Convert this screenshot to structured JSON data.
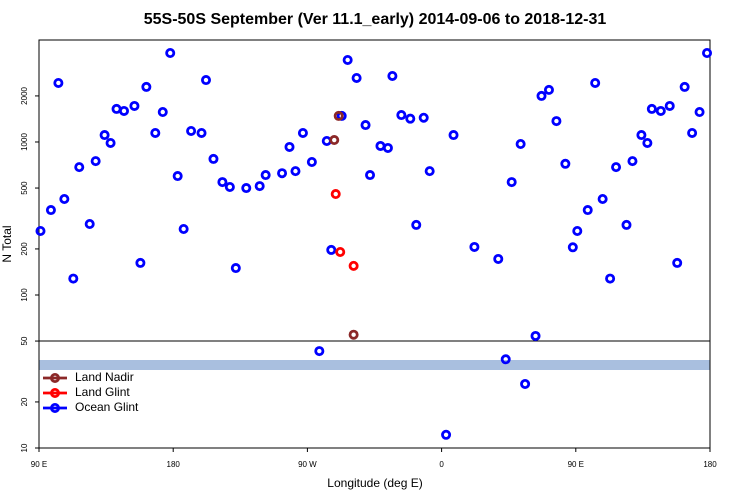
{
  "chart_data": {
    "type": "scatter",
    "title": "55S-50S September (Ver 11.1_early)   2014-09-06 to 2018-12-31",
    "x_label": "Longitude (deg E)",
    "y_label": "N Total",
    "log_y": true,
    "legend": "lower left",
    "hline": 50,
    "xlim": [
      90,
      540
    ],
    "ylim": [
      10,
      4640
    ],
    "xticks": [
      {
        "value": 90,
        "label": "90 E"
      },
      180,
      {
        "value": 270,
        "label": "90 W"
      },
      {
        "value": 360,
        "label": "0"
      },
      {
        "value": 450,
        "label": "90 E"
      },
      {
        "value": 540,
        "label": "180"
      }
    ],
    "yticks": [
      10,
      20,
      50,
      100,
      200,
      500,
      1000,
      2000
    ],
    "series": [
      {
        "name": "Land Nadir",
        "color": "#8b2828",
        "x": [
          291,
          288,
          301
        ],
        "values": [
          1480,
          1030,
          55
        ]
      },
      {
        "name": "Land Glint",
        "color": "#ff0000",
        "x": [
          289,
          292,
          301
        ],
        "values": [
          457,
          191,
          155
        ]
      },
      {
        "name": "Ocean Glint",
        "color": "#0000ff",
        "x": [
          91,
          98,
          103,
          107,
          113,
          117,
          124,
          128,
          134,
          138,
          142,
          147,
          154,
          158,
          162,
          168,
          173,
          178,
          183,
          187,
          192,
          199,
          202,
          207,
          213,
          218,
          222,
          229,
          238,
          242,
          253,
          262,
          258,
          267,
          273,
          278,
          283,
          286,
          293,
          297,
          303,
          309,
          312,
          319,
          324,
          327,
          333,
          339,
          343,
          348,
          352,
          363,
          368,
          382,
          398,
          403,
          407,
          413,
          416,
          423,
          427,
          432,
          437,
          443,
          448,
          451,
          458,
          463,
          468,
          473,
          477,
          484,
          488,
          494,
          498,
          501,
          507,
          513,
          518,
          523,
          528,
          533,
          538
        ],
        "values": [
          262,
          359,
          2430,
          424,
          128,
          685,
          291,
          750,
          1110,
          985,
          1645,
          1595,
          1720,
          162,
          2290,
          1145,
          1570,
          3815,
          599,
          270,
          1180,
          1145,
          2540,
          775,
          547,
          508,
          150,
          500,
          515,
          608,
          625,
          645,
          928,
          1145,
          740,
          43,
          1015,
          197,
          1480,
          3435,
          2620,
          1290,
          608,
          942,
          914,
          2700,
          1500,
          1420,
          287,
          1440,
          645,
          12.2,
          1110,
          206,
          172,
          38,
          547,
          970,
          26.2,
          54,
          2000,
          2190,
          1370,
          720,
          205,
          262,
          359,
          2430,
          424,
          128,
          685,
          287,
          750,
          1110,
          985,
          1645,
          1595,
          1720,
          162,
          2290,
          1145,
          1570,
          3815
        ]
      }
    ]
  }
}
